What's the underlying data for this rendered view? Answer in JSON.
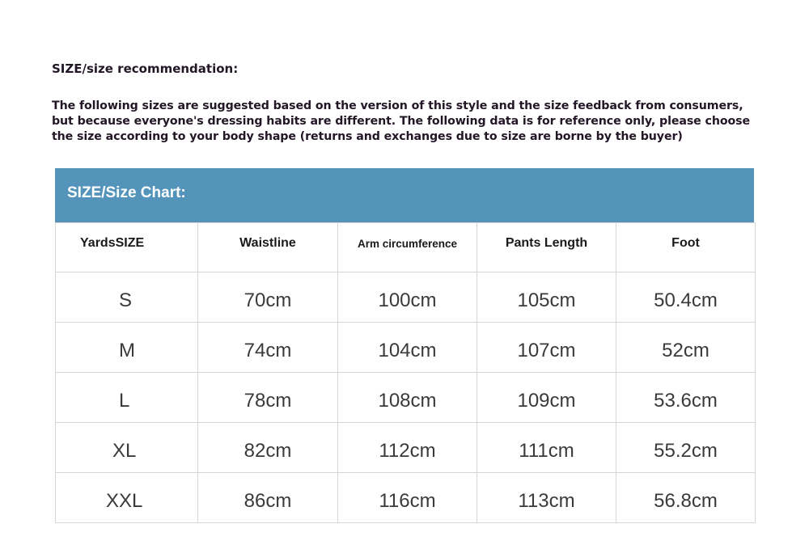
{
  "title": "SIZE/size recommendation:",
  "intro": "The following sizes are suggested based on the version of this style and the size feedback from consumers, but because everyone's dressing habits are different. The following data is for reference only, please choose the size according to your body shape (returns and exchanges due to size are borne by the buyer)",
  "chart_header": "SIZE/Size Chart:",
  "header_color": "#5494bb",
  "columns": [
    "YardsSIZE",
    "Waistline",
    "Arm circumference",
    "Pants Length",
    "Foot"
  ],
  "rows": [
    [
      "S",
      "70cm",
      "100cm",
      "105cm",
      "50.4cm"
    ],
    [
      "M",
      "74cm",
      "104cm",
      "107cm",
      "52cm"
    ],
    [
      "L",
      "78cm",
      "108cm",
      "109cm",
      "53.6cm"
    ],
    [
      "XL",
      "82cm",
      "112cm",
      "111cm",
      "55.2cm"
    ],
    [
      "XXL",
      "86cm",
      "116cm",
      "113cm",
      "56.8cm"
    ]
  ]
}
